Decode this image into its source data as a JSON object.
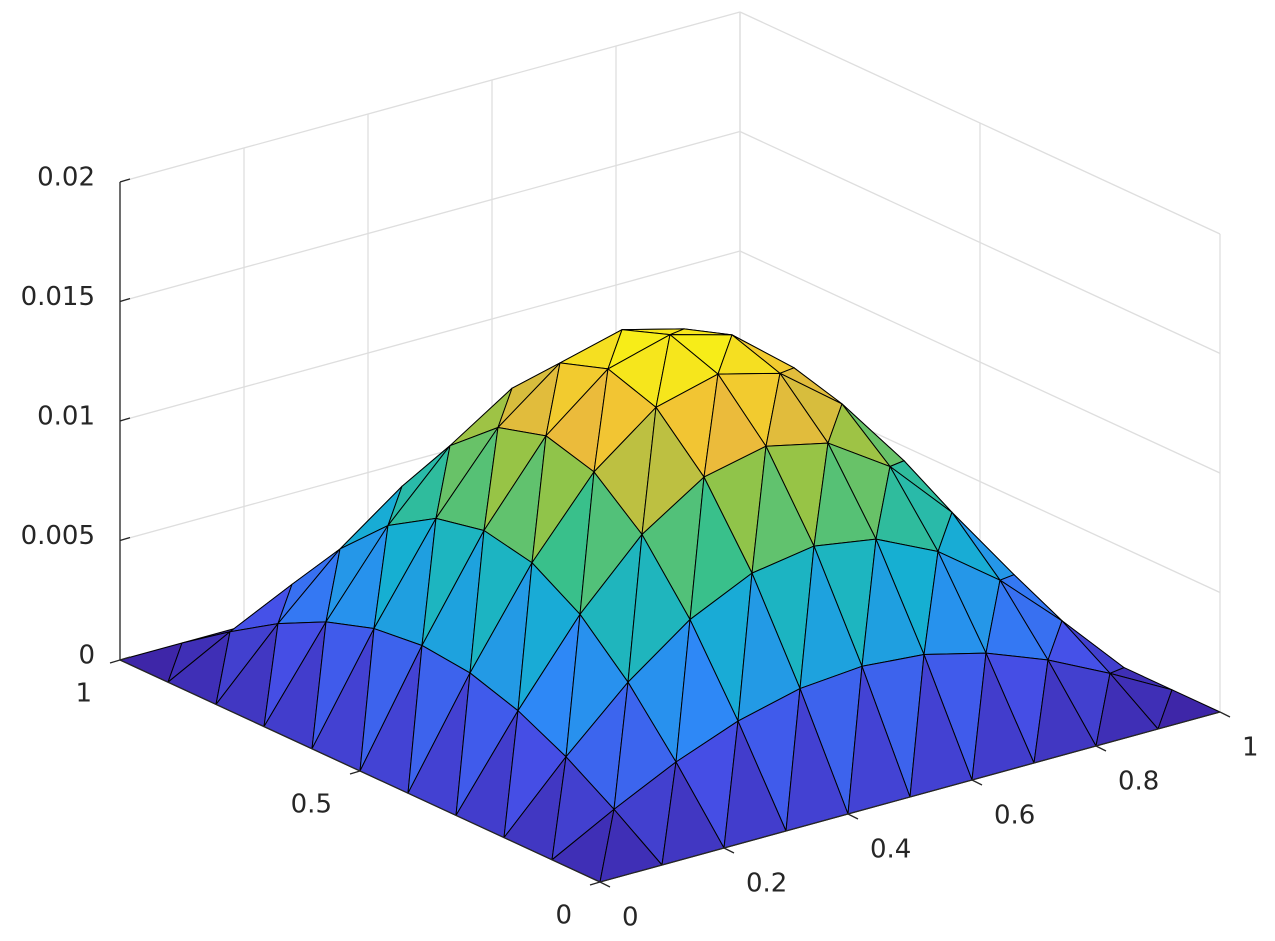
{
  "chart_data": {
    "type": "surface",
    "x": [
      0,
      0.1,
      0.2,
      0.3,
      0.4,
      0.5,
      0.6,
      0.7,
      0.8,
      0.9,
      1
    ],
    "y": [
      0,
      0.1,
      0.2,
      0.3,
      0.4,
      0.5,
      0.6,
      0.7,
      0.8,
      0.9,
      1
    ],
    "z": [
      [
        0,
        0,
        0,
        0,
        0,
        0,
        0,
        0,
        0,
        0,
        0
      ],
      [
        0,
        0.0014,
        0.00267,
        0.00367,
        0.00432,
        0.00454,
        0.00432,
        0.00367,
        0.00267,
        0.0014,
        0
      ],
      [
        0,
        0.00267,
        0.00508,
        0.00699,
        0.00822,
        0.00864,
        0.00822,
        0.00699,
        0.00508,
        0.00267,
        0
      ],
      [
        0,
        0.00367,
        0.00699,
        0.00962,
        0.01131,
        0.01189,
        0.01131,
        0.00962,
        0.00699,
        0.00367,
        0
      ],
      [
        0,
        0.00432,
        0.00822,
        0.01131,
        0.0133,
        0.01398,
        0.0133,
        0.01131,
        0.00822,
        0.00432,
        0
      ],
      [
        0,
        0.00454,
        0.00864,
        0.01189,
        0.01398,
        0.0147,
        0.01398,
        0.01189,
        0.00864,
        0.00454,
        0
      ],
      [
        0,
        0.00432,
        0.00822,
        0.01131,
        0.0133,
        0.01398,
        0.0133,
        0.01131,
        0.00822,
        0.00432,
        0
      ],
      [
        0,
        0.00367,
        0.00699,
        0.00962,
        0.01131,
        0.01189,
        0.01131,
        0.00962,
        0.00699,
        0.00367,
        0
      ],
      [
        0,
        0.00267,
        0.00508,
        0.00699,
        0.00822,
        0.00864,
        0.00822,
        0.00699,
        0.00508,
        0.00267,
        0
      ],
      [
        0,
        0.0014,
        0.00267,
        0.00367,
        0.00432,
        0.00454,
        0.00432,
        0.00367,
        0.00267,
        0.0014,
        0
      ],
      [
        0,
        0,
        0,
        0,
        0,
        0,
        0,
        0,
        0,
        0,
        0
      ]
    ],
    "xlim": [
      0,
      1
    ],
    "ylim": [
      0,
      1
    ],
    "zlim": [
      0,
      0.02
    ],
    "xticks": [
      0,
      0.2,
      0.4,
      0.6,
      0.8,
      1
    ],
    "yticks": [
      0,
      0.5,
      1
    ],
    "zticks": [
      0,
      0.005,
      0.01,
      0.015,
      0.02
    ],
    "grid": true,
    "colormap": "parula",
    "edgecolor": "#000000"
  }
}
